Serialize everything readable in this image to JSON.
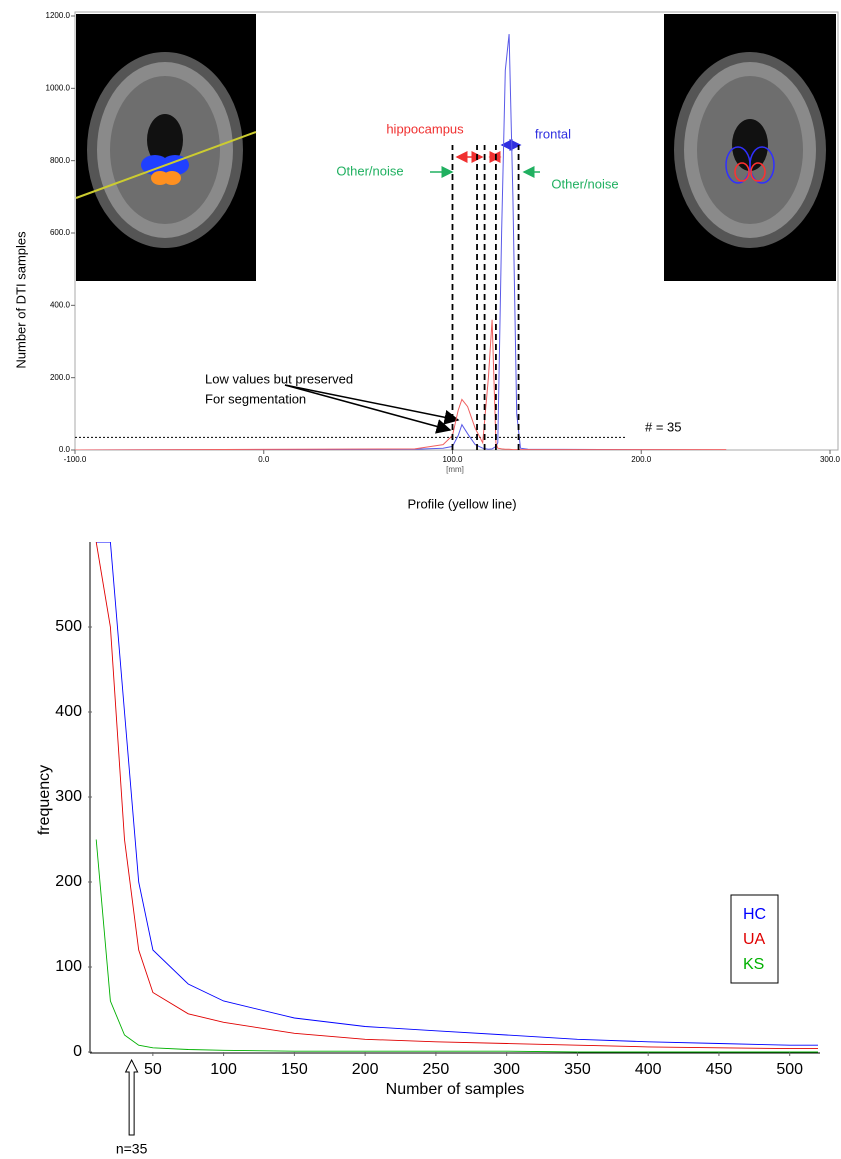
{
  "chart_data": [
    {
      "type": "line",
      "xlabel": "Profile (yellow line)",
      "xunit": "[mm]",
      "ylabel": "Number of DTI samples",
      "xlim": [
        -100,
        300
      ],
      "ylim": [
        0,
        1200
      ],
      "xticks": [
        {
          "value": -100,
          "label": "-100.0"
        },
        {
          "value": 0,
          "label": "0.0"
        },
        {
          "value": 100,
          "label": "100.0"
        },
        {
          "value": 200,
          "label": "200.0"
        },
        {
          "value": 300,
          "label": "300.0"
        }
      ],
      "yticks": [
        {
          "value": 0,
          "label": "0.0"
        },
        {
          "value": 200,
          "label": "200.0"
        },
        {
          "value": 400,
          "label": "400.0"
        },
        {
          "value": 600,
          "label": "600.0"
        },
        {
          "value": 800,
          "label": "800.0"
        },
        {
          "value": 1000,
          "label": "1000.0"
        },
        {
          "value": 1200,
          "label": "1200.0"
        }
      ],
      "x": [
        -100,
        80,
        95,
        100,
        103,
        105,
        108,
        112,
        116,
        119,
        121,
        123,
        124,
        126,
        128,
        130,
        132,
        134,
        136,
        140,
        245
      ],
      "series": [
        {
          "color": "#5a5ae8",
          "values": [
            0,
            2,
            5,
            10,
            40,
            70,
            45,
            15,
            5,
            2,
            3,
            10,
            20,
            600,
            1050,
            1150,
            700,
            100,
            5,
            2,
            0
          ]
        },
        {
          "color": "#f06060",
          "values": [
            0,
            3,
            15,
            40,
            110,
            140,
            120,
            60,
            20,
            200,
            360,
            20,
            5,
            3,
            2,
            2,
            1,
            1,
            1,
            1,
            1
          ]
        }
      ],
      "dividers": [
        100,
        113,
        117,
        123,
        135
      ],
      "threshold": 35,
      "annotations": {
        "hippocampus": "hippocampus",
        "frontal": "frontal",
        "noise_left": "Other/noise",
        "noise_right": "Other/noise",
        "low1": "Low values but preserved",
        "low2": "For segmentation",
        "threshold_label": "# = 35"
      }
    },
    {
      "type": "line",
      "xlabel": "Number of samples",
      "ylabel": "frequency",
      "xlim": [
        7,
        520
      ],
      "ylim": [
        0,
        600
      ],
      "xticks": [
        50,
        100,
        150,
        200,
        250,
        300,
        350,
        400,
        450,
        500
      ],
      "yticks": [
        0,
        100,
        200,
        300,
        400,
        500
      ],
      "x": [
        10,
        20,
        30,
        40,
        50,
        75,
        100,
        150,
        200,
        250,
        300,
        350,
        400,
        450,
        500,
        520
      ],
      "series": [
        {
          "name": "HC",
          "color": "#0000ff",
          "values": [
            600,
            600,
            400,
            200,
            120,
            80,
            60,
            40,
            30,
            25,
            20,
            15,
            12,
            10,
            8,
            8
          ]
        },
        {
          "name": "UA",
          "color": "#e00000",
          "values": [
            600,
            500,
            250,
            120,
            70,
            45,
            35,
            22,
            15,
            12,
            10,
            8,
            6,
            5,
            4,
            4
          ]
        },
        {
          "name": "KS",
          "color": "#00b000",
          "values": [
            250,
            60,
            20,
            8,
            5,
            3,
            2,
            1,
            1,
            1,
            1,
            0,
            0,
            0,
            0,
            0
          ]
        }
      ],
      "legend": "lower right",
      "annotation": "n=35",
      "annotation_x": 35
    }
  ]
}
